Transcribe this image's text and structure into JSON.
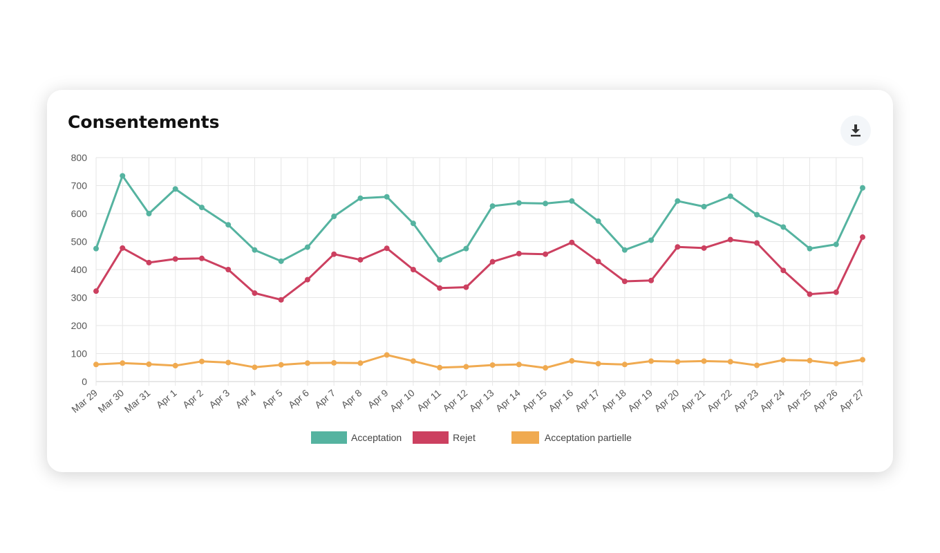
{
  "card": {
    "title": "Consentements",
    "download_icon": "download-icon"
  },
  "chart_data": {
    "type": "line",
    "title": "Consentements",
    "categories": [
      "Mar 29",
      "Mar 30",
      "Mar 31",
      "Apr 1",
      "Apr 2",
      "Apr 3",
      "Apr 4",
      "Apr 5",
      "Apr 6",
      "Apr 7",
      "Apr 8",
      "Apr 9",
      "Apr 10",
      "Apr 11",
      "Apr 12",
      "Apr 13",
      "Apr 14",
      "Apr 15",
      "Apr 16",
      "Apr 17",
      "Apr 18",
      "Apr 19",
      "Apr 20",
      "Apr 21",
      "Apr 22",
      "Apr 23",
      "Apr 24",
      "Apr 25",
      "Apr 26",
      "Apr 27"
    ],
    "yticks": [
      "0",
      "100",
      "200",
      "300",
      "400",
      "500",
      "600",
      "700",
      "800"
    ],
    "ylim": [
      0,
      800
    ],
    "grid": true,
    "legend_position": "bottom",
    "series": [
      {
        "name": "Acceptation",
        "color": "#55b3a0",
        "values": [
          475,
          735,
          600,
          688,
          622,
          560,
          470,
          430,
          480,
          590,
          655,
          660,
          565,
          435,
          475,
          627,
          638,
          636,
          645,
          573,
          470,
          505,
          645,
          625,
          662,
          596,
          552,
          475,
          490,
          692
        ]
      },
      {
        "name": "Rejet",
        "color": "#cc4060",
        "values": [
          323,
          477,
          425,
          438,
          440,
          400,
          316,
          292,
          364,
          455,
          435,
          476,
          400,
          334,
          337,
          428,
          457,
          455,
          497,
          429,
          358,
          361,
          481,
          477,
          507,
          495,
          397,
          312,
          319,
          516
        ]
      },
      {
        "name": "Acceptation partielle",
        "color": "#f0aa50",
        "values": [
          61,
          66,
          62,
          57,
          72,
          68,
          51,
          60,
          66,
          67,
          66,
          95,
          73,
          50,
          53,
          59,
          61,
          49,
          74,
          64,
          61,
          73,
          71,
          73,
          71,
          58,
          77,
          75,
          64,
          78
        ]
      }
    ]
  }
}
